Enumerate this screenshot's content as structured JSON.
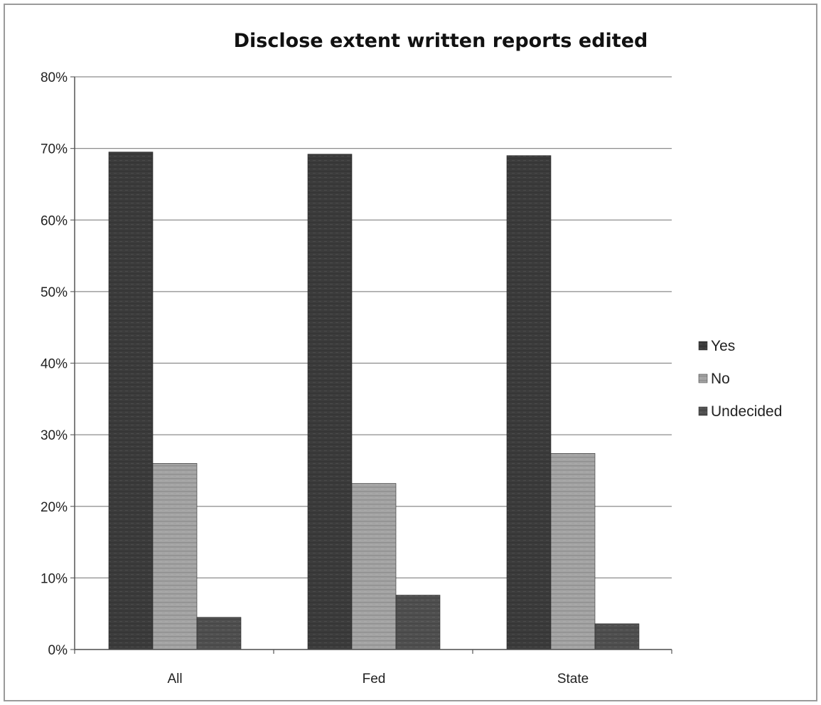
{
  "chart_data": {
    "type": "bar",
    "title": "Disclose extent written reports edited",
    "xlabel": "",
    "ylabel": "",
    "categories": [
      "All",
      "Fed",
      "State"
    ],
    "series": [
      {
        "name": "Yes",
        "values": [
          0.695,
          0.692,
          0.69
        ],
        "color": "#3c3c3c"
      },
      {
        "name": "No",
        "values": [
          0.26,
          0.232,
          0.274
        ],
        "color": "#a4a4a4"
      },
      {
        "name": "Undecided",
        "values": [
          0.045,
          0.076,
          0.036
        ],
        "color": "#505050"
      }
    ],
    "ylim": [
      0,
      0.8
    ],
    "yticks": [
      0,
      0.1,
      0.2,
      0.3,
      0.4,
      0.5,
      0.6,
      0.7,
      0.8
    ],
    "ytick_labels": [
      "0%",
      "10%",
      "20%",
      "30%",
      "40%",
      "50%",
      "60%",
      "70%",
      "80%"
    ],
    "grid": true,
    "legend_position": "right"
  }
}
